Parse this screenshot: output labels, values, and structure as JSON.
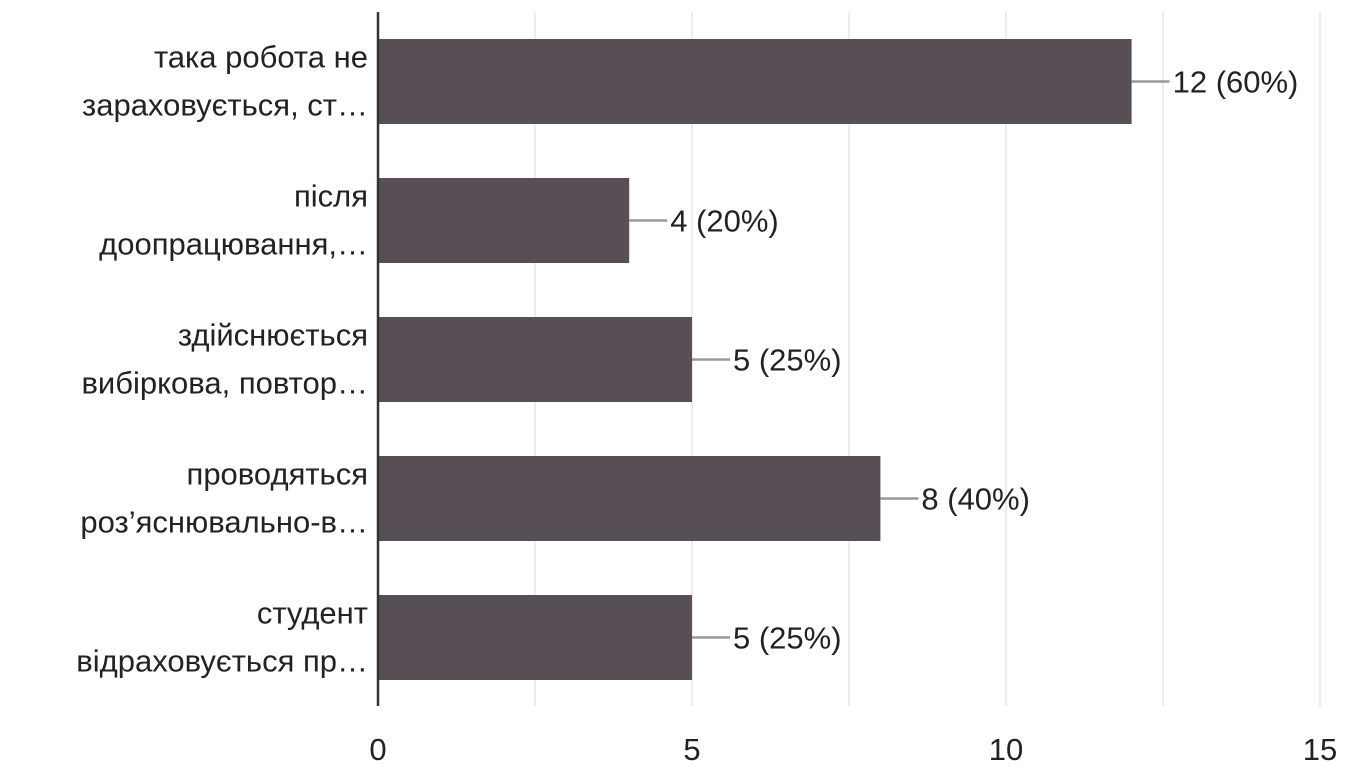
{
  "chart_data": {
    "type": "bar",
    "orientation": "horizontal",
    "categories": [
      [
        "така робота не",
        "зараховується, ст…"
      ],
      [
        "після",
        "доопрацювання,…"
      ],
      [
        "здійснюється",
        "вибіркова, повтор…"
      ],
      [
        "проводяться",
        "роз’яснювально-в…"
      ],
      [
        "студент",
        "відраховується пр…"
      ]
    ],
    "values": [
      12,
      4,
      5,
      8,
      5
    ],
    "data_labels": [
      "12 (60%)",
      "4 (20%)",
      "5 (25%)",
      "8 (40%)",
      "5 (25%)"
    ],
    "xlim": [
      0,
      15
    ],
    "xticks": [
      0,
      5,
      10,
      15
    ],
    "grid": true,
    "colors": {
      "bar": "#574f55",
      "grid": "#e6e6e6",
      "axis": "#333333",
      "leader": "#999999"
    }
  }
}
